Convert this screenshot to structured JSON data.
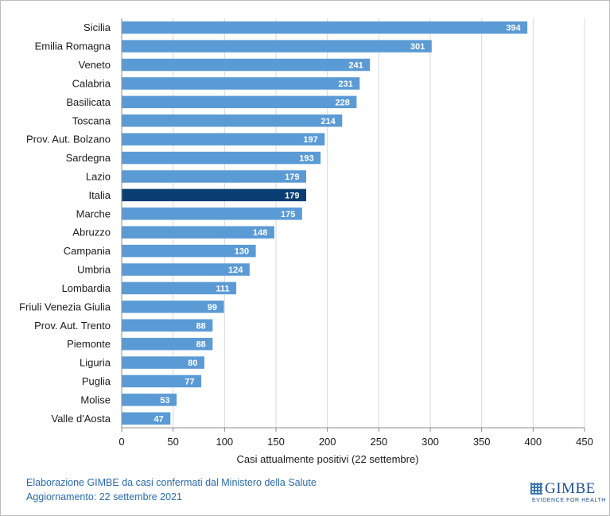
{
  "chart_data": {
    "type": "bar",
    "orientation": "horizontal",
    "categories": [
      "Sicilia",
      "Emilia Romagna",
      "Veneto",
      "Calabria",
      "Basilicata",
      "Toscana",
      "Prov. Aut. Bolzano",
      "Sardegna",
      "Lazio",
      "Italia",
      "Marche",
      "Abruzzo",
      "Campania",
      "Umbria",
      "Lombardia",
      "Friuli Venezia Giulia",
      "Prov. Aut. Trento",
      "Piemonte",
      "Liguria",
      "Puglia",
      "Molise",
      "Valle d'Aosta"
    ],
    "values": [
      394,
      301,
      241,
      231,
      228,
      214,
      197,
      193,
      179,
      179,
      175,
      148,
      130,
      124,
      111,
      99,
      88,
      88,
      80,
      77,
      53,
      47
    ],
    "highlight": "Italia",
    "xlabel": "Casi attualmente positivi (22 settembre)",
    "ylabel": "",
    "xlim": [
      0,
      450
    ],
    "xticks": [
      0,
      50,
      100,
      150,
      200,
      250,
      300,
      350,
      400,
      450
    ],
    "grid": true,
    "colors": {
      "bar": "#5b9bd5",
      "highlight": "#0b3f74",
      "grid": "#d9d9d9"
    }
  },
  "footer": {
    "line1": "Elaborazione GIMBE da casi confermati dal Ministero della Salute",
    "line2": "Aggiornamento: 22 settembre 2021"
  },
  "logo": {
    "name": "GIMBE",
    "tagline": "EVIDENCE FOR HEALTH"
  }
}
